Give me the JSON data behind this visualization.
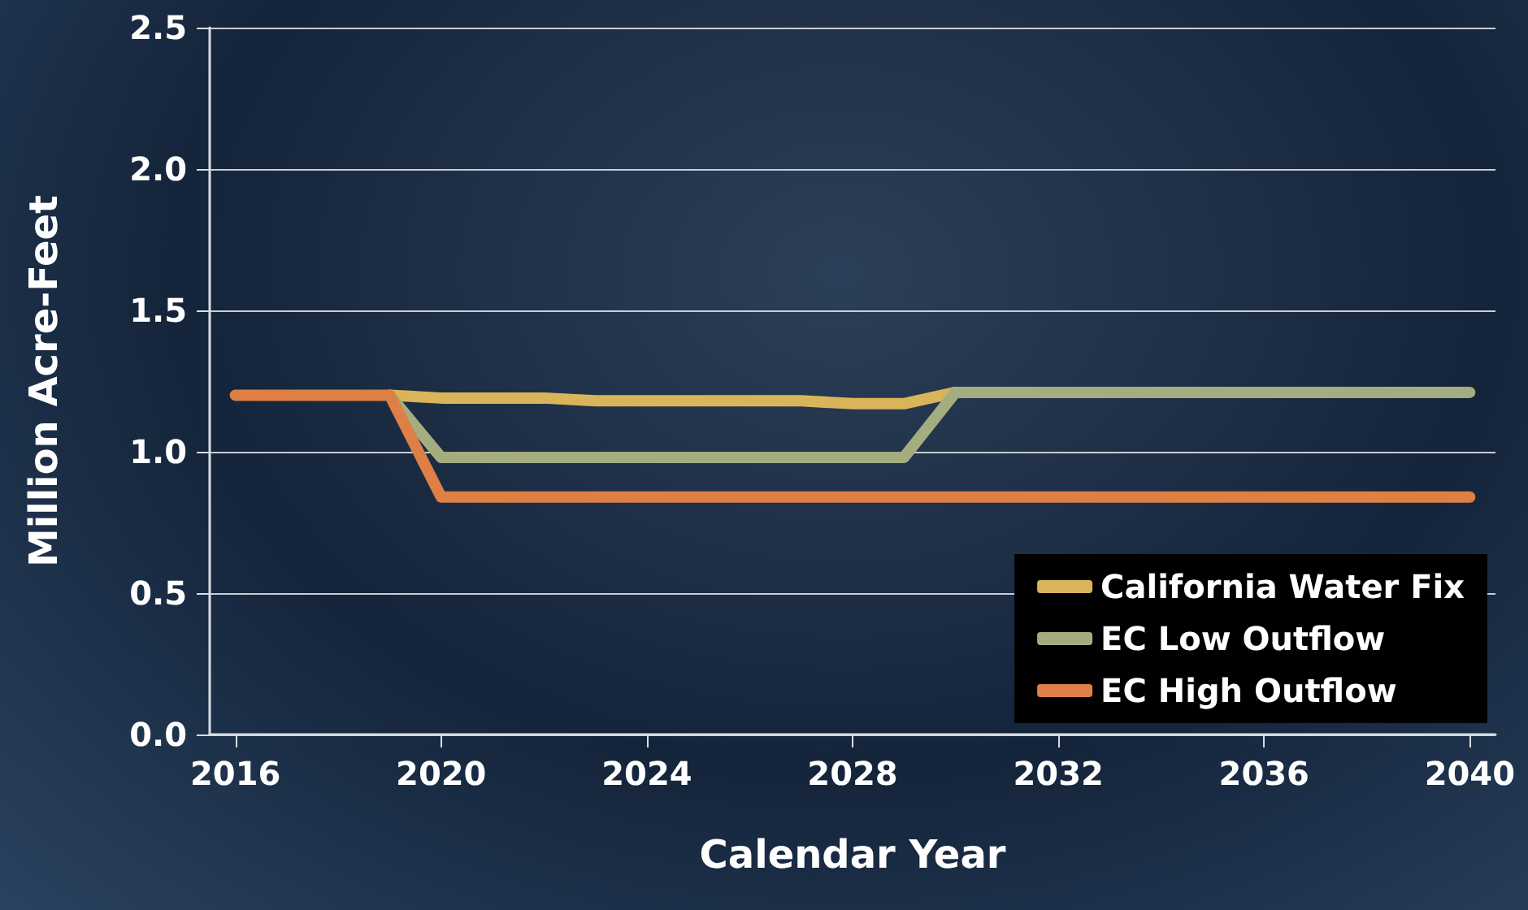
{
  "chart_data": {
    "type": "line",
    "xlabel": "Calendar Year",
    "ylabel": "Million Acre-Feet",
    "x": [
      2016,
      2017,
      2018,
      2019,
      2020,
      2021,
      2022,
      2023,
      2024,
      2025,
      2026,
      2027,
      2028,
      2029,
      2030,
      2031,
      2032,
      2033,
      2034,
      2035,
      2036,
      2037,
      2038,
      2039,
      2040
    ],
    "series": [
      {
        "name": "California Water Fix",
        "color": "#d9b45a",
        "values": [
          null,
          null,
          null,
          1.2,
          1.19,
          1.19,
          1.19,
          1.18,
          1.18,
          1.18,
          1.18,
          1.18,
          1.17,
          1.17,
          1.21,
          null,
          null,
          null,
          null,
          null,
          null,
          null,
          null,
          null,
          null
        ]
      },
      {
        "name": "EC Low Outflow",
        "color": "#a3ad7f",
        "values": [
          null,
          null,
          null,
          1.2,
          0.98,
          0.98,
          0.98,
          0.98,
          0.98,
          0.98,
          0.98,
          0.98,
          0.98,
          0.98,
          1.21,
          1.21,
          1.21,
          1.21,
          1.21,
          1.21,
          1.21,
          1.21,
          1.21,
          1.21,
          1.21
        ]
      },
      {
        "name": "EC High Outflow",
        "color": "#de7f45",
        "values": [
          1.2,
          1.2,
          1.2,
          1.2,
          0.84,
          0.84,
          0.84,
          0.84,
          0.84,
          0.84,
          0.84,
          0.84,
          0.84,
          0.84,
          0.84,
          0.84,
          0.84,
          0.84,
          0.84,
          0.84,
          0.84,
          0.84,
          0.84,
          0.84,
          0.84
        ]
      }
    ],
    "xlim": [
      2015.5,
      2040.5
    ],
    "xticks": [
      2016,
      2020,
      2024,
      2028,
      2032,
      2036,
      2040
    ],
    "ylim": [
      0,
      2.5
    ],
    "yticks": [
      {
        "value": 0,
        "label": "0.0"
      },
      {
        "value": 0.5,
        "label": "0.5"
      },
      {
        "value": 1,
        "label": "1.0"
      },
      {
        "value": 1.5,
        "label": "1.5"
      },
      {
        "value": 2,
        "label": "2.0"
      },
      {
        "value": 2.5,
        "label": "2.5"
      }
    ],
    "grid": "y",
    "legend": "bottom right",
    "marker": "none",
    "line_style": "solid"
  }
}
